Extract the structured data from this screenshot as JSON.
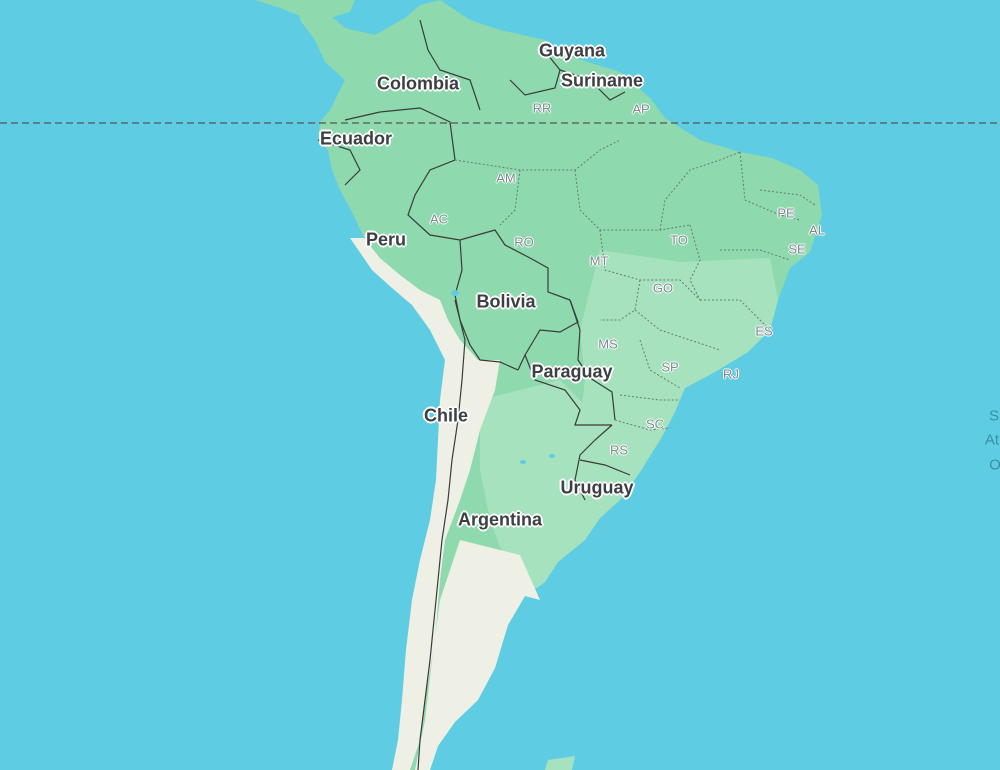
{
  "map": {
    "colors": {
      "ocean": "#5ecde3",
      "land_green": "#8ed9ad",
      "land_green_light": "#a6e2bd",
      "land_desert": "#eef0e6",
      "border": "#3b3b3b",
      "state_border": "#6a7a78"
    },
    "countries": [
      {
        "name": "Colombia"
      },
      {
        "name": "Guyana"
      },
      {
        "name": "Suriname"
      },
      {
        "name": "Ecuador"
      },
      {
        "name": "Peru"
      },
      {
        "name": "Bolivia"
      },
      {
        "name": "Paraguay"
      },
      {
        "name": "Chile"
      },
      {
        "name": "Uruguay"
      },
      {
        "name": "Argentina"
      }
    ],
    "states": [
      {
        "code": "RR"
      },
      {
        "code": "AP"
      },
      {
        "code": "AM"
      },
      {
        "code": "PE"
      },
      {
        "code": "AL"
      },
      {
        "code": "SE"
      },
      {
        "code": "AC"
      },
      {
        "code": "RO"
      },
      {
        "code": "TO"
      },
      {
        "code": "MT"
      },
      {
        "code": "GO"
      },
      {
        "code": "ES"
      },
      {
        "code": "MS"
      },
      {
        "code": "SP"
      },
      {
        "code": "RJ"
      },
      {
        "code": "SC"
      },
      {
        "code": "RS"
      }
    ],
    "ocean_label": {
      "lines": [
        "S",
        "At",
        "O"
      ]
    }
  }
}
